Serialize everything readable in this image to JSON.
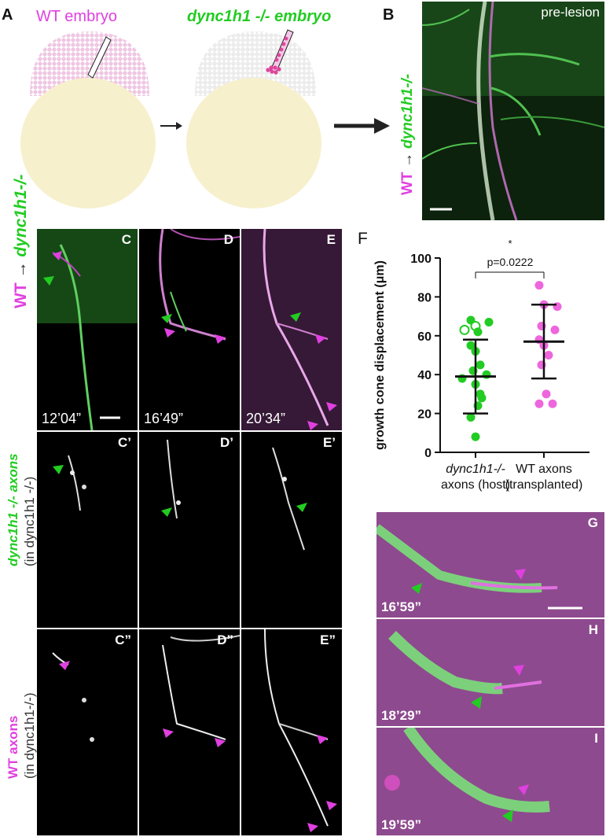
{
  "panelA": {
    "label": "A",
    "wt_embryo": "WT embryo",
    "mutant_embryo": "dync1h1 -/- embryo"
  },
  "panelB": {
    "label": "B",
    "tag": "pre-lesion",
    "side_wt": "WT",
    "side_mut": "dync1h1-/-"
  },
  "row1": {
    "side_wt": "WT",
    "side_mut": "dync1h1-/-",
    "panels": [
      {
        "label": "C",
        "time": "12’04”"
      },
      {
        "label": "D",
        "time": "16’49”"
      },
      {
        "label": "E",
        "time": "20’34”"
      }
    ]
  },
  "row2": {
    "side_line1": "dync1h1 -/- axons",
    "side_line2": "(in dync1h1 -/-)",
    "panels": [
      {
        "label": "C’"
      },
      {
        "label": "D’"
      },
      {
        "label": "E’"
      }
    ]
  },
  "row3": {
    "side_line1": "WT axons",
    "side_line2": "(in dync1h1-/-)",
    "panels": [
      {
        "label": "C”"
      },
      {
        "label": "D”"
      },
      {
        "label": "E”"
      }
    ]
  },
  "panelF": {
    "label": "F",
    "significance": "*",
    "pvalue": "p=0.0222"
  },
  "chart_data": {
    "type": "scatter",
    "ylabel": "growth cone displacement (μm)",
    "ylim": [
      0,
      100
    ],
    "yticks": [
      0,
      20,
      40,
      60,
      80,
      100
    ],
    "categories": [
      "dync1h1-/- axons (host)",
      "WT axons (transplanted)"
    ],
    "category_lines": [
      [
        "dync1h1-/-",
        "axons (host)"
      ],
      [
        "WT axons",
        "(transplanted)"
      ]
    ],
    "series": [
      {
        "color": "#22cc22",
        "values": [
          68,
          65,
          67,
          63,
          62,
          55,
          52,
          45,
          42,
          40,
          38,
          35,
          30,
          28,
          24,
          18,
          8
        ],
        "open": [
          false,
          true,
          false,
          true,
          false,
          false,
          false,
          false,
          false,
          false,
          false,
          false,
          false,
          false,
          false,
          false,
          false
        ],
        "mean": 39,
        "sd_low": 20,
        "sd_high": 58
      },
      {
        "color": "#ee66dd",
        "values": [
          86,
          76,
          75,
          65,
          63,
          58,
          55,
          50,
          45,
          30,
          25,
          25
        ],
        "mean": 57,
        "sd_low": 38,
        "sd_high": 76
      }
    ]
  },
  "panelsGHI": {
    "panels": [
      {
        "label": "G",
        "time": "16’59”"
      },
      {
        "label": "H",
        "time": "18’29”"
      },
      {
        "label": "I",
        "time": "19’59”"
      }
    ]
  }
}
